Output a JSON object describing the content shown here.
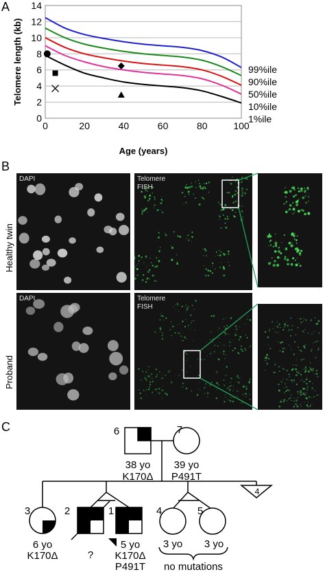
{
  "panels": {
    "a": "A",
    "b": "B",
    "c": "C"
  },
  "chart_data": {
    "type": "line",
    "title": "",
    "xlabel": "Age (years)",
    "ylabel": "Telomere length (kb)",
    "xlim": [
      0,
      100
    ],
    "ylim": [
      0,
      14
    ],
    "x_ticks": [
      "0",
      "20",
      "40",
      "60",
      "80",
      "100"
    ],
    "y_ticks": [
      "0",
      "2",
      "4",
      "6",
      "8",
      "10",
      "12",
      "14"
    ],
    "grid": "horizontal",
    "x": [
      0,
      10,
      20,
      30,
      40,
      50,
      60,
      70,
      80,
      90,
      100
    ],
    "series": [
      {
        "name": "99%ile",
        "color": "#1f1fd0",
        "values": [
          12.5,
          11.2,
          10.4,
          9.9,
          9.5,
          9.2,
          9.0,
          8.8,
          8.4,
          7.6,
          6.3
        ]
      },
      {
        "name": "90%ile",
        "color": "#1a8a1a",
        "values": [
          11.2,
          10.0,
          9.2,
          8.7,
          8.3,
          8.0,
          7.8,
          7.6,
          7.2,
          6.4,
          5.3
        ]
      },
      {
        "name": "50%ile",
        "color": "#dd1111",
        "values": [
          10.0,
          8.8,
          8.0,
          7.5,
          7.1,
          6.8,
          6.6,
          6.4,
          6.0,
          5.2,
          4.1
        ]
      },
      {
        "name": "10%ile",
        "color": "#e0339a",
        "values": [
          9.0,
          7.8,
          7.0,
          6.4,
          6.0,
          5.7,
          5.5,
          5.3,
          4.9,
          4.1,
          3.0
        ]
      },
      {
        "name": "1%ile",
        "color": "#000000",
        "values": [
          7.8,
          6.6,
          5.6,
          5.0,
          4.5,
          4.2,
          4.0,
          3.8,
          3.4,
          2.7,
          1.9
        ]
      }
    ],
    "markers": [
      {
        "shape": "circle",
        "x": 1,
        "y": 8.0
      },
      {
        "shape": "square",
        "x": 3,
        "y": 5.6
      },
      {
        "shape": "cross",
        "x": 3,
        "y": 3.7
      },
      {
        "shape": "diamond",
        "x": 37,
        "y": 6.5
      },
      {
        "shape": "triangle",
        "x": 37,
        "y": 2.9
      }
    ]
  },
  "microscopy": {
    "row1": "Healthy twin",
    "row2": "Proband",
    "dapi": "DAPI",
    "fish_line1": "Telomere",
    "fish_line2": "FISH"
  },
  "pedigree": {
    "father": {
      "number": "6",
      "age": "38 yo",
      "genotype": "K170Δ"
    },
    "mother": {
      "number": "7",
      "age": "39 yo",
      "genotype": "P491T"
    },
    "child3": {
      "number": "3",
      "age": "6 yo",
      "genotype": "K170Δ"
    },
    "child2": {
      "number": "2",
      "age": "",
      "genotype": "?"
    },
    "child1": {
      "number": "1",
      "age": "5 yo",
      "genotype1": "K170Δ",
      "genotype2": "P491T"
    },
    "child4": {
      "number": "4",
      "age": "3 yo"
    },
    "child5": {
      "number": "5",
      "age": "3 yo"
    },
    "others": {
      "number": "4"
    },
    "twins_note": "no mutations"
  }
}
